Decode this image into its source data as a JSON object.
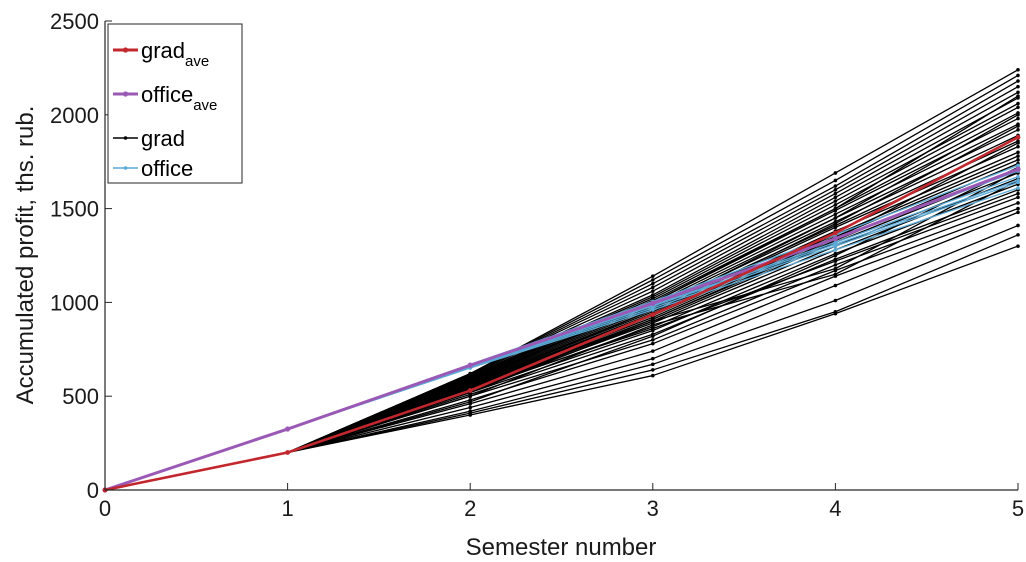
{
  "chart_data": {
    "type": "line",
    "title": "",
    "xlabel": "Semester number",
    "ylabel": "Accumulated profit, ths. rub.",
    "xlim": [
      0,
      5
    ],
    "ylim": [
      0,
      2500
    ],
    "x_ticks": [
      "0",
      "1",
      "2",
      "3",
      "4",
      "5"
    ],
    "y_ticks": [
      "0",
      "500",
      "1000",
      "1500",
      "2000",
      "2500"
    ],
    "grid": false,
    "legend_position": "top-left",
    "x": [
      0,
      1,
      2,
      3,
      4,
      5
    ],
    "series": [
      {
        "name": "grad_ave",
        "legend_main": "grad",
        "legend_sub": "ave",
        "color": "#c1272d",
        "role": "average",
        "values": [
          0,
          200,
          530,
          935,
          1370,
          1880
        ]
      },
      {
        "name": "office_ave",
        "legend_main": "office",
        "legend_sub": "ave",
        "color": "#9b59b6",
        "role": "average",
        "values": [
          0,
          325,
          665,
          995,
          1340,
          1710
        ]
      },
      {
        "name": "grad",
        "legend_main": "grad",
        "legend_sub": "",
        "color": "#000000",
        "role": "simulation"
      },
      {
        "name": "office",
        "legend_main": "office",
        "legend_sub": "",
        "color": "#5aa9d6",
        "role": "simulation"
      }
    ],
    "grad_runs": [
      [
        0,
        200,
        400,
        610,
        940,
        1300
      ],
      [
        0,
        200,
        410,
        640,
        950,
        1360
      ],
      [
        0,
        200,
        420,
        670,
        1010,
        1410
      ],
      [
        0,
        200,
        440,
        700,
        1090,
        1480
      ],
      [
        0,
        200,
        460,
        740,
        1140,
        1500
      ],
      [
        0,
        200,
        480,
        780,
        1170,
        1530
      ],
      [
        0,
        200,
        500,
        800,
        1200,
        1560
      ],
      [
        0,
        200,
        510,
        830,
        1230,
        1600
      ],
      [
        0,
        200,
        520,
        850,
        1260,
        1630
      ],
      [
        0,
        200,
        530,
        870,
        1280,
        1660
      ],
      [
        0,
        200,
        535,
        890,
        1300,
        1690
      ],
      [
        0,
        200,
        540,
        900,
        1320,
        1710
      ],
      [
        0,
        200,
        545,
        910,
        1330,
        1740
      ],
      [
        0,
        200,
        550,
        920,
        1350,
        1760
      ],
      [
        0,
        200,
        555,
        930,
        1360,
        1780
      ],
      [
        0,
        200,
        560,
        940,
        1380,
        1800
      ],
      [
        0,
        200,
        565,
        950,
        1400,
        1830
      ],
      [
        0,
        200,
        570,
        960,
        1410,
        1860
      ],
      [
        0,
        200,
        575,
        970,
        1430,
        1890
      ],
      [
        0,
        200,
        580,
        980,
        1450,
        1920
      ],
      [
        0,
        200,
        585,
        990,
        1470,
        1950
      ],
      [
        0,
        200,
        590,
        1000,
        1490,
        1980
      ],
      [
        0,
        200,
        595,
        1010,
        1500,
        2010
      ],
      [
        0,
        200,
        600,
        1020,
        1520,
        2040
      ],
      [
        0,
        200,
        605,
        1030,
        1540,
        2060
      ],
      [
        0,
        200,
        610,
        1040,
        1560,
        2090
      ],
      [
        0,
        200,
        615,
        1060,
        1580,
        2120
      ],
      [
        0,
        200,
        620,
        1080,
        1600,
        2150
      ],
      [
        0,
        200,
        620,
        1100,
        1620,
        2180
      ],
      [
        0,
        200,
        620,
        1120,
        1650,
        2210
      ],
      [
        0,
        200,
        620,
        1140,
        1690,
        2240
      ],
      [
        0,
        200,
        500,
        880,
        1150,
        1650
      ],
      [
        0,
        200,
        520,
        900,
        1180,
        1700
      ],
      [
        0,
        200,
        540,
        860,
        1220,
        1580
      ],
      [
        0,
        200,
        560,
        960,
        1450,
        2000
      ],
      [
        0,
        200,
        580,
        1000,
        1500,
        2100
      ],
      [
        0,
        200,
        470,
        820,
        1250,
        1720
      ],
      [
        0,
        200,
        530,
        910,
        1340,
        1850
      ],
      [
        0,
        200,
        550,
        940,
        1420,
        1940
      ]
    ],
    "office_runs": [
      [
        0,
        325,
        650,
        960,
        1280,
        1610
      ],
      [
        0,
        325,
        655,
        970,
        1300,
        1640
      ],
      [
        0,
        325,
        660,
        985,
        1320,
        1670
      ],
      [
        0,
        325,
        665,
        995,
        1340,
        1700
      ],
      [
        0,
        325,
        670,
        1005,
        1360,
        1730
      ],
      [
        0,
        325,
        660,
        980,
        1310,
        1650
      ]
    ]
  }
}
